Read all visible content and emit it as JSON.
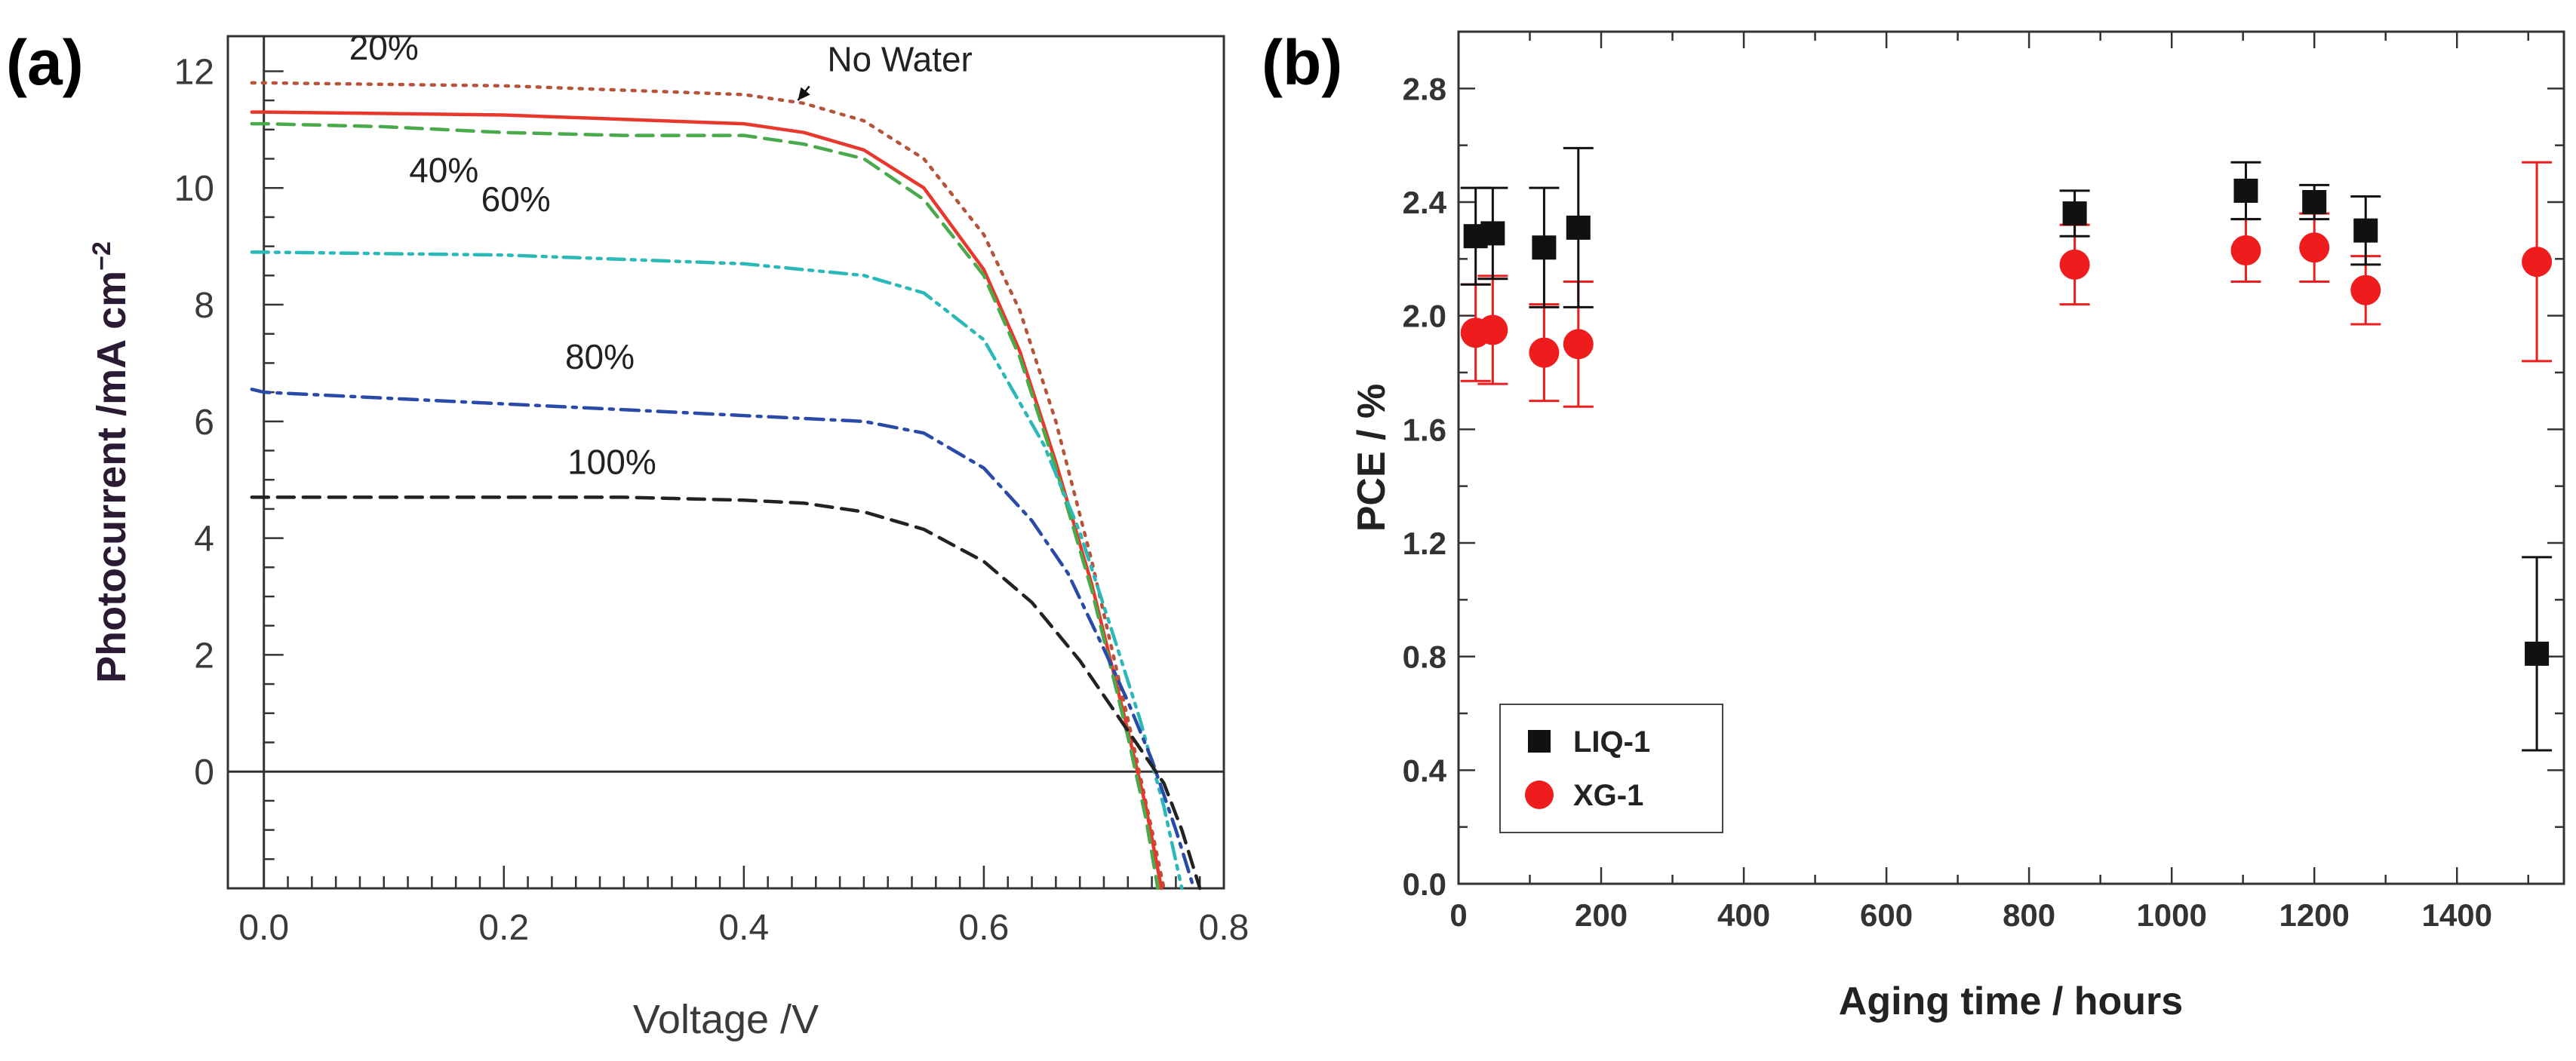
{
  "panel_a_letter": "(a)",
  "panel_b_letter": "(b)",
  "chart_data": [
    {
      "type": "line",
      "title": "",
      "xlabel": "Voltage /V",
      "ylabel": "Photocurrent /mA cm",
      "ylabel_superscript": "−2",
      "xlim": [
        -0.03,
        0.8
      ],
      "ylim": [
        -2.0,
        12.6
      ],
      "xticks": [
        0.0,
        0.2,
        0.4,
        0.6,
        0.8
      ],
      "xtick_labels": [
        "0.0",
        "0.2",
        "0.4",
        "0.6",
        "0.8"
      ],
      "yticks": [
        0,
        2,
        4,
        6,
        8,
        10,
        12
      ],
      "ytick_labels": [
        "0",
        "2",
        "4",
        "6",
        "8",
        "10",
        "12"
      ],
      "grid": false,
      "zero_line": true,
      "series": [
        {
          "name": "20%",
          "color": "#b5543a",
          "dash": "dotted",
          "x": [
            -0.01,
            0.0,
            0.2,
            0.4,
            0.45,
            0.5,
            0.55,
            0.6,
            0.63,
            0.66,
            0.69,
            0.72,
            0.74,
            0.75
          ],
          "y": [
            11.8,
            11.8,
            11.75,
            11.6,
            11.45,
            11.15,
            10.5,
            9.2,
            7.9,
            6.0,
            3.6,
            0.9,
            -1.0,
            -2.0
          ]
        },
        {
          "name": "No Water",
          "color": "#e8382d",
          "dash": "solid",
          "x": [
            -0.01,
            0.0,
            0.2,
            0.4,
            0.45,
            0.5,
            0.55,
            0.6,
            0.63,
            0.66,
            0.69,
            0.72,
            0.735,
            0.748
          ],
          "y": [
            11.3,
            11.3,
            11.25,
            11.1,
            10.95,
            10.65,
            10.0,
            8.6,
            7.2,
            5.3,
            3.2,
            0.7,
            -0.6,
            -2.0
          ]
        },
        {
          "name": "40%",
          "color": "#4aa94a",
          "dash": "dashed",
          "x": [
            -0.01,
            0.0,
            0.1,
            0.2,
            0.3,
            0.4,
            0.45,
            0.5,
            0.55,
            0.6,
            0.63,
            0.66,
            0.69,
            0.72,
            0.735,
            0.745
          ],
          "y": [
            11.1,
            11.1,
            11.05,
            10.95,
            10.9,
            10.9,
            10.75,
            10.5,
            9.8,
            8.5,
            7.1,
            5.2,
            3.1,
            0.6,
            -0.8,
            -2.0
          ]
        },
        {
          "name": "60%",
          "color": "#2ab8b8",
          "dash": "dashdotdot",
          "x": [
            -0.01,
            0.0,
            0.2,
            0.4,
            0.5,
            0.55,
            0.6,
            0.65,
            0.68,
            0.71,
            0.73,
            0.75,
            0.765
          ],
          "y": [
            8.9,
            8.9,
            8.85,
            8.7,
            8.5,
            8.2,
            7.4,
            5.6,
            4.1,
            2.2,
            0.9,
            -0.6,
            -2.0
          ]
        },
        {
          "name": "80%",
          "color": "#2a4aa8",
          "dash": "dashdot",
          "x": [
            -0.01,
            0.0,
            0.1,
            0.2,
            0.3,
            0.4,
            0.5,
            0.55,
            0.6,
            0.64,
            0.67,
            0.7,
            0.72,
            0.74,
            0.76,
            0.775
          ],
          "y": [
            6.55,
            6.5,
            6.4,
            6.3,
            6.2,
            6.1,
            6.0,
            5.8,
            5.2,
            4.3,
            3.4,
            2.1,
            1.2,
            0.2,
            -1.0,
            -2.0
          ]
        },
        {
          "name": "100%",
          "color": "#222222",
          "dash": "dashed",
          "x": [
            -0.01,
            0.0,
            0.1,
            0.2,
            0.3,
            0.4,
            0.45,
            0.5,
            0.55,
            0.6,
            0.64,
            0.68,
            0.71,
            0.73,
            0.75,
            0.765,
            0.78
          ],
          "y": [
            4.7,
            4.7,
            4.7,
            4.7,
            4.7,
            4.65,
            4.6,
            4.45,
            4.15,
            3.6,
            2.9,
            1.9,
            1.0,
            0.4,
            -0.2,
            -1.0,
            -2.0
          ]
        }
      ],
      "annotations": [
        {
          "text": "20%",
          "x": 0.1,
          "y": 12.2
        },
        {
          "text": "No Water",
          "x": 0.53,
          "y": 12.0,
          "arrow_to": [
            0.445,
            11.5
          ]
        },
        {
          "text": "40%",
          "x": 0.15,
          "y": 10.1
        },
        {
          "text": "60%",
          "x": 0.21,
          "y": 9.6
        },
        {
          "text": "80%",
          "x": 0.28,
          "y": 6.9
        },
        {
          "text": "100%",
          "x": 0.29,
          "y": 5.1
        }
      ]
    },
    {
      "type": "scatter",
      "title": "",
      "xlabel": "Aging time / hours",
      "ylabel": "PCE / %",
      "xlim": [
        0,
        1550
      ],
      "ylim": [
        0.0,
        3.0
      ],
      "xticks": [
        0,
        200,
        400,
        600,
        800,
        1000,
        1200,
        1400
      ],
      "xtick_labels": [
        "0",
        "200",
        "400",
        "600",
        "800",
        "1000",
        "1200",
        "1400"
      ],
      "yticks": [
        0.0,
        0.4,
        0.8,
        1.2,
        1.6,
        2.0,
        2.4,
        2.8
      ],
      "ytick_labels": [
        "0.0",
        "0.4",
        "0.8",
        "1.2",
        "1.6",
        "2.0",
        "2.4",
        "2.8"
      ],
      "grid": false,
      "legend_position": "bottom-left",
      "series": [
        {
          "name": "LIQ-1",
          "marker": "square",
          "color": "#111111",
          "x": [
            24,
            48,
            120,
            168,
            864,
            1104,
            1200,
            1272,
            1512
          ],
          "y": [
            2.28,
            2.29,
            2.24,
            2.31,
            2.36,
            2.44,
            2.4,
            2.3,
            0.81
          ],
          "err": [
            0.17,
            0.16,
            0.21,
            0.28,
            0.08,
            0.1,
            0.06,
            0.12,
            0.34
          ]
        },
        {
          "name": "XG-1",
          "marker": "circle",
          "color": "#ee1c1c",
          "x": [
            24,
            48,
            120,
            168,
            864,
            1104,
            1200,
            1272,
            1512
          ],
          "y": [
            1.94,
            1.95,
            1.87,
            1.9,
            2.18,
            2.23,
            2.24,
            2.09,
            2.19
          ],
          "err": [
            0.17,
            0.19,
            0.17,
            0.22,
            0.14,
            0.11,
            0.12,
            0.12,
            0.35
          ]
        }
      ]
    }
  ]
}
